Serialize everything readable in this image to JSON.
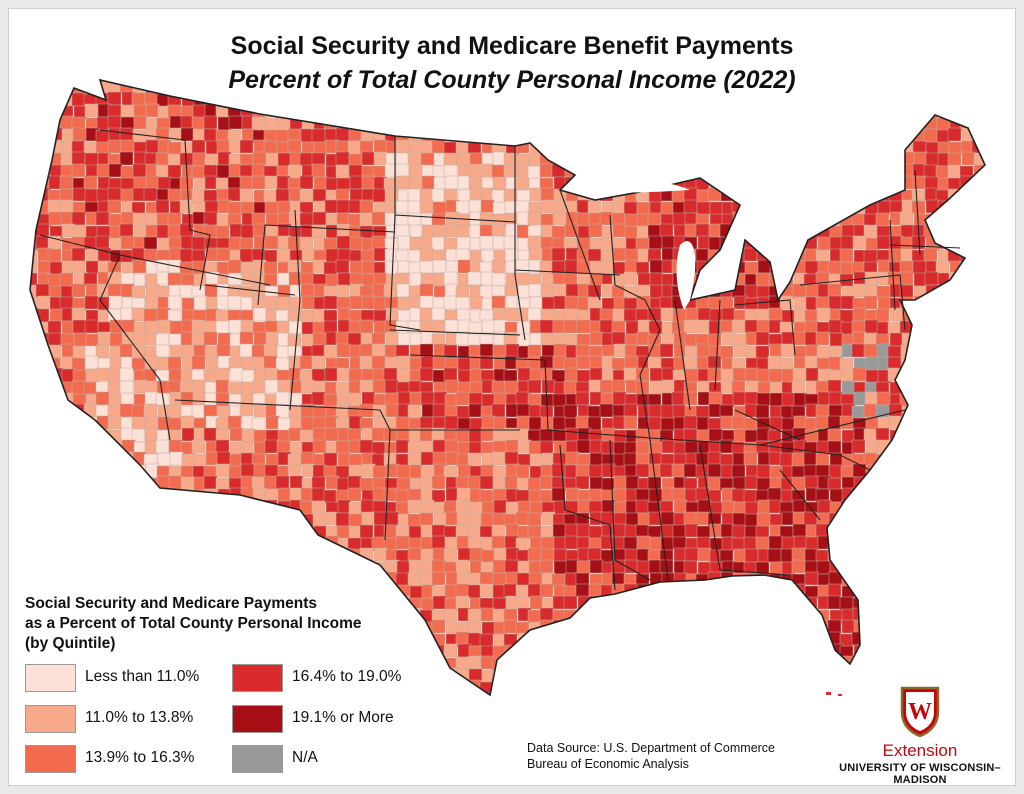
{
  "title": "Social Security and Medicare Benefit Payments",
  "subtitle": "Percent of Total County Personal Income (2022)",
  "legend": {
    "title_lines": [
      "Social Security and Medicare Payments",
      "as a Percent of Total County Personal Income",
      "(by Quintile)"
    ],
    "items": [
      {
        "label": "Less than 11.0%",
        "color": "#fde1d6"
      },
      {
        "label": "11.0% to 13.8%",
        "color": "#f7a98a"
      },
      {
        "label": "13.9% to 16.3%",
        "color": "#f26b4f"
      },
      {
        "label": "16.4% to 19.0%",
        "color": "#d92b2b"
      },
      {
        "label": "19.1% or More",
        "color": "#a50f15"
      },
      {
        "label": "N/A",
        "color": "#999999"
      }
    ]
  },
  "source": {
    "line1": "Data Source: U.S. Department of Commerce",
    "line2": "Bureau of Economic Analysis"
  },
  "branding": {
    "name": "Extension",
    "institution": "UNIVERSITY OF WISCONSIN–MADISON",
    "crest_letter": "W",
    "accent": "#c5050c"
  }
}
